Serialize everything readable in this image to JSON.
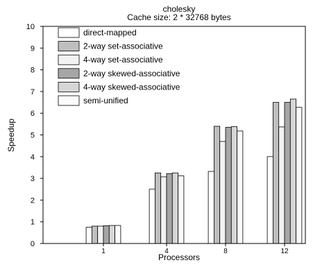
{
  "chart_data": {
    "type": "bar",
    "title": "cholesky",
    "subtitle": "Cache size: 2 * 32768 bytes",
    "xlabel": "Processors",
    "ylabel": "Speedup",
    "categories": [
      "1",
      "4",
      "8",
      "12"
    ],
    "ylim": [
      0,
      10
    ],
    "yticks": [
      "0",
      "1",
      "2",
      "3",
      "4",
      "5",
      "6",
      "7",
      "8",
      "9",
      "10"
    ],
    "grid": false,
    "legend_position": "top-left",
    "series": [
      {
        "name": "direct-mapped",
        "color": "#ffffff",
        "values": [
          0.75,
          2.5,
          3.32,
          4.0
        ]
      },
      {
        "name": "2-way set-associative",
        "color": "#bfbfbf",
        "values": [
          0.8,
          3.25,
          5.4,
          6.5
        ]
      },
      {
        "name": "4-way set-associative",
        "color": "#f2f2f2",
        "values": [
          0.8,
          3.07,
          4.7,
          5.37
        ]
      },
      {
        "name": "2-way skewed-associative",
        "color": "#a6a6a6",
        "values": [
          0.82,
          3.22,
          5.35,
          6.5
        ]
      },
      {
        "name": "4-way skewed-associative",
        "color": "#d6d6d6",
        "values": [
          0.83,
          3.25,
          5.38,
          6.65
        ]
      },
      {
        "name": "semi-unified",
        "color": "#fbfbfb",
        "values": [
          0.83,
          3.12,
          5.18,
          6.27
        ]
      }
    ]
  }
}
